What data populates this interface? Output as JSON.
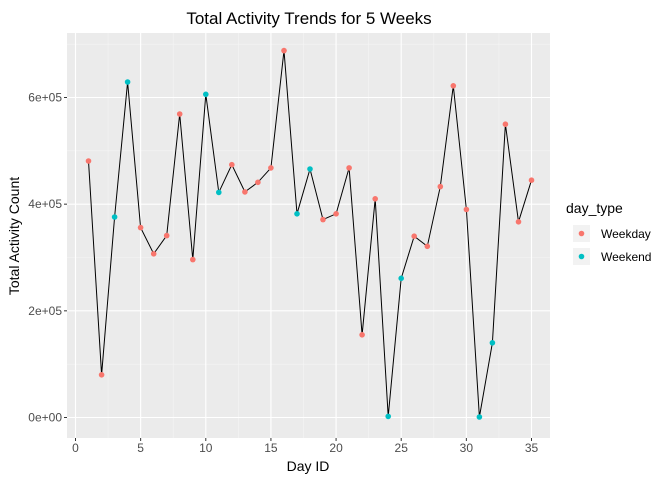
{
  "chart_data": {
    "type": "line",
    "title": "Total Activity Trends for 5 Weeks",
    "xlabel": "Day ID",
    "ylabel": "Total Activity Count",
    "xlim": [
      0,
      36
    ],
    "ylim": [
      -10000,
      720000
    ],
    "x_ticks": [
      0,
      5,
      10,
      15,
      20,
      25,
      30,
      35
    ],
    "x_tick_labels": [
      "0",
      "5",
      "10",
      "15",
      "20",
      "25",
      "30",
      "35"
    ],
    "y_ticks": [
      0,
      200000,
      400000,
      600000
    ],
    "y_tick_labels": [
      "0e+00",
      "2e+05",
      "4e+05",
      "6e+05"
    ],
    "grid": true,
    "legend": {
      "title": "day_type",
      "placement": "right",
      "entries": [
        {
          "label": "Weekday",
          "color": "#F8766D"
        },
        {
          "label": "Weekend",
          "color": "#00BFC4"
        }
      ]
    },
    "colors": {
      "Weekday": "#F8766D",
      "Weekend": "#00BFC4",
      "line": "#000000",
      "panel": "#EBEBEB",
      "grid": "#FFFFFF"
    },
    "points": [
      {
        "x": 1,
        "y": 481000,
        "type": "Weekday"
      },
      {
        "x": 2,
        "y": 80000,
        "type": "Weekday"
      },
      {
        "x": 3,
        "y": 376000,
        "type": "Weekend"
      },
      {
        "x": 4,
        "y": 629000,
        "type": "Weekend"
      },
      {
        "x": 5,
        "y": 356000,
        "type": "Weekday"
      },
      {
        "x": 6,
        "y": 307000,
        "type": "Weekday"
      },
      {
        "x": 7,
        "y": 341000,
        "type": "Weekday"
      },
      {
        "x": 8,
        "y": 569000,
        "type": "Weekday"
      },
      {
        "x": 9,
        "y": 296000,
        "type": "Weekday"
      },
      {
        "x": 10,
        "y": 606000,
        "type": "Weekend"
      },
      {
        "x": 11,
        "y": 422000,
        "type": "Weekend"
      },
      {
        "x": 12,
        "y": 474000,
        "type": "Weekday"
      },
      {
        "x": 13,
        "y": 423000,
        "type": "Weekday"
      },
      {
        "x": 14,
        "y": 441000,
        "type": "Weekday"
      },
      {
        "x": 15,
        "y": 468000,
        "type": "Weekday"
      },
      {
        "x": 16,
        "y": 688000,
        "type": "Weekday"
      },
      {
        "x": 17,
        "y": 382000,
        "type": "Weekend"
      },
      {
        "x": 18,
        "y": 466000,
        "type": "Weekend"
      },
      {
        "x": 19,
        "y": 371000,
        "type": "Weekday"
      },
      {
        "x": 20,
        "y": 382000,
        "type": "Weekday"
      },
      {
        "x": 21,
        "y": 468000,
        "type": "Weekday"
      },
      {
        "x": 22,
        "y": 155000,
        "type": "Weekday"
      },
      {
        "x": 23,
        "y": 410000,
        "type": "Weekday"
      },
      {
        "x": 24,
        "y": 2000,
        "type": "Weekend"
      },
      {
        "x": 25,
        "y": 261000,
        "type": "Weekend"
      },
      {
        "x": 26,
        "y": 340000,
        "type": "Weekday"
      },
      {
        "x": 27,
        "y": 321000,
        "type": "Weekday"
      },
      {
        "x": 28,
        "y": 433000,
        "type": "Weekday"
      },
      {
        "x": 29,
        "y": 622000,
        "type": "Weekday"
      },
      {
        "x": 30,
        "y": 390000,
        "type": "Weekday"
      },
      {
        "x": 31,
        "y": 1000,
        "type": "Weekend"
      },
      {
        "x": 32,
        "y": 140000,
        "type": "Weekend"
      },
      {
        "x": 33,
        "y": 550000,
        "type": "Weekday"
      },
      {
        "x": 34,
        "y": 367000,
        "type": "Weekday"
      },
      {
        "x": 35,
        "y": 445000,
        "type": "Weekday"
      }
    ]
  }
}
